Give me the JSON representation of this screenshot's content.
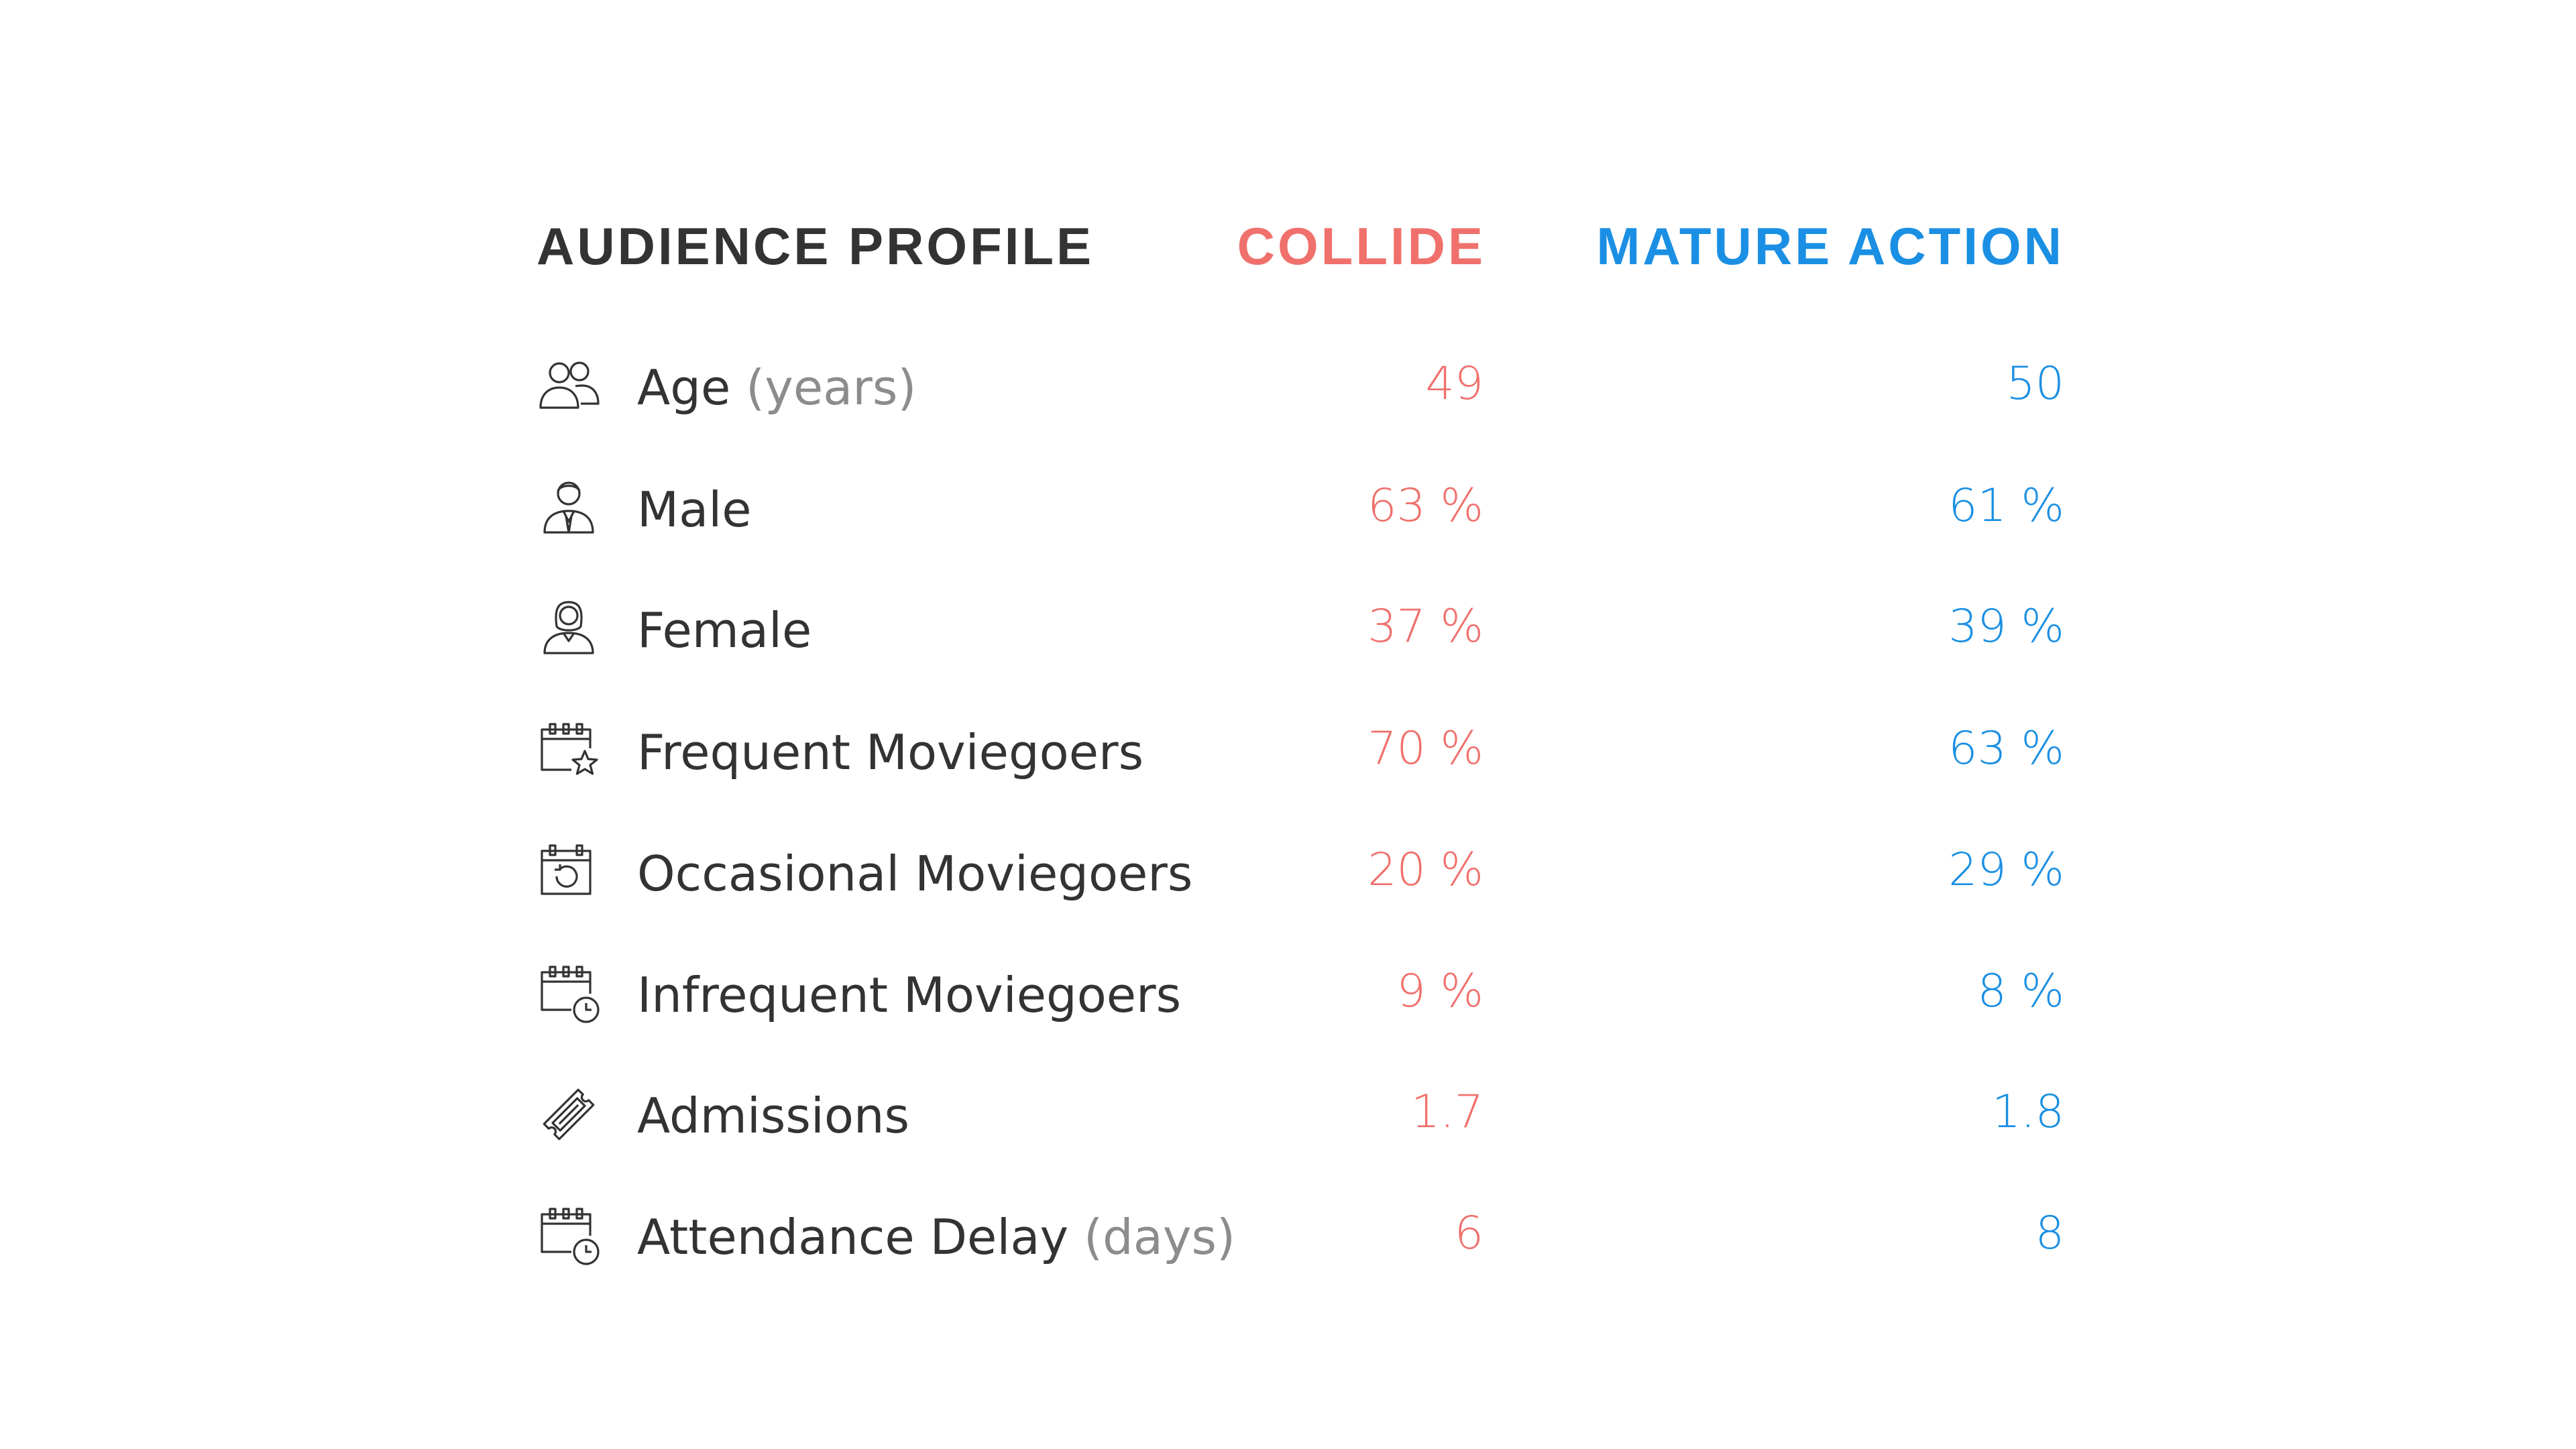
{
  "header": {
    "label": "AUDIENCE PROFILE",
    "col1": "COLLIDE",
    "col2": "MATURE ACTION"
  },
  "colors": {
    "col1": "#f0706c",
    "col2": "#1a8fe3",
    "text": "#333333",
    "muted": "#8c8c8c"
  },
  "rows": [
    {
      "icon": "users-icon",
      "label": "Age",
      "unit": "(years)",
      "col1": "49",
      "col2": "50"
    },
    {
      "icon": "male-icon",
      "label": "Male",
      "unit": "",
      "col1": "63 %",
      "col2": "61 %"
    },
    {
      "icon": "female-icon",
      "label": "Female",
      "unit": "",
      "col1": "37 %",
      "col2": "39 %"
    },
    {
      "icon": "calendar-star-icon",
      "label": "Frequent Moviegoers",
      "unit": "",
      "col1": "70 %",
      "col2": "63 %"
    },
    {
      "icon": "calendar-refresh-icon",
      "label": "Occasional Moviegoers",
      "unit": "",
      "col1": "20 %",
      "col2": "29 %"
    },
    {
      "icon": "calendar-clock-icon",
      "label": "Infrequent Moviegoers",
      "unit": "",
      "col1": "9 %",
      "col2": "8 %"
    },
    {
      "icon": "ticket-icon",
      "label": "Admissions",
      "unit": "",
      "col1": "1.7",
      "col2": "1.8"
    },
    {
      "icon": "calendar-clock-icon",
      "label": "Attendance Delay",
      "unit": "(days)",
      "col1": "6",
      "col2": "8"
    }
  ]
}
